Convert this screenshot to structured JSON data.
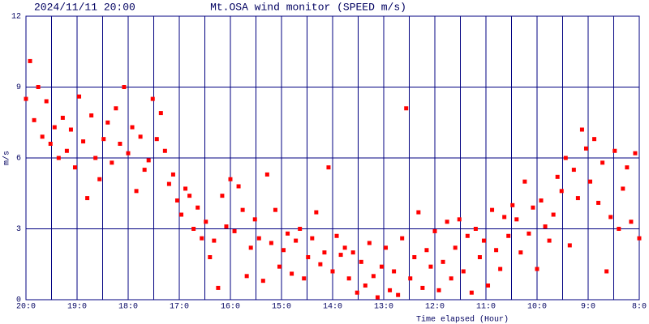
{
  "chart_data": {
    "type": "scatter",
    "date": "2024/11/11 20:00",
    "title": "Mt.OSA wind monitor (SPEED m/s)",
    "y_label": "m/s",
    "x_label": "Time elapsed (Hour)",
    "color": "#ff0000",
    "grid": true,
    "grid_color": "#000080",
    "xlim": [
      0,
      12
    ],
    "ylim": [
      0,
      12
    ],
    "yticks": [
      0,
      3,
      6,
      9,
      12
    ],
    "xticks": [
      {
        "value": 0,
        "label": "20:0"
      },
      {
        "value": 1,
        "label": "19:0"
      },
      {
        "value": 2,
        "label": "18:0"
      },
      {
        "value": 3,
        "label": "17:0"
      },
      {
        "value": 4,
        "label": "16:0"
      },
      {
        "value": 5,
        "label": "15:0"
      },
      {
        "value": 6,
        "label": "14:0"
      },
      {
        "value": 7,
        "label": "13:0"
      },
      {
        "value": 8,
        "label": "12:0"
      },
      {
        "value": 9,
        "label": "11:0"
      },
      {
        "value": 10,
        "label": "10:0"
      },
      {
        "value": 11,
        "label": "9:0"
      },
      {
        "value": 12,
        "label": "8:0"
      }
    ],
    "minor_xticks": [
      0.5,
      1.5,
      2.5,
      3.5,
      4.5,
      5.5,
      6.5,
      7.5,
      8.5,
      9.5,
      10.5,
      11.5
    ],
    "x": [
      0,
      0.08,
      0.16,
      0.24,
      0.32,
      0.4,
      0.48,
      0.56,
      0.64,
      0.72,
      0.8,
      0.88,
      0.96,
      1.04,
      1.12,
      1.2,
      1.28,
      1.36,
      1.44,
      1.52,
      1.6,
      1.68,
      1.76,
      1.84,
      1.92,
      2,
      2.08,
      2.16,
      2.24,
      2.32,
      2.4,
      2.48,
      2.56,
      2.64,
      2.72,
      2.8,
      2.88,
      2.96,
      3.04,
      3.12,
      3.2,
      3.28,
      3.36,
      3.44,
      3.52,
      3.6,
      3.68,
      3.76,
      3.84,
      3.92,
      4,
      4.08,
      4.16,
      4.24,
      4.32,
      4.4,
      4.48,
      4.56,
      4.64,
      4.72,
      4.8,
      4.88,
      4.96,
      5.04,
      5.12,
      5.2,
      5.28,
      5.36,
      5.44,
      5.52,
      5.6,
      5.68,
      5.76,
      5.84,
      5.92,
      6,
      6.08,
      6.16,
      6.24,
      6.32,
      6.4,
      6.48,
      6.56,
      6.64,
      6.72,
      6.8,
      6.88,
      6.96,
      7.04,
      7.12,
      7.2,
      7.28,
      7.36,
      7.44,
      7.52,
      7.6,
      7.68,
      7.76,
      7.84,
      7.92,
      8,
      8.08,
      8.16,
      8.24,
      8.32,
      8.4,
      8.48,
      8.56,
      8.64,
      8.72,
      8.8,
      8.88,
      8.96,
      9.04,
      9.12,
      9.2,
      9.28,
      9.36,
      9.44,
      9.52,
      9.6,
      9.68,
      9.76,
      9.84,
      9.92,
      10,
      10.08,
      10.16,
      10.24,
      10.32,
      10.4,
      10.48,
      10.56,
      10.64,
      10.72,
      10.8,
      10.88,
      10.96,
      11.04,
      11.12,
      11.2,
      11.28,
      11.36,
      11.44,
      11.52,
      11.6,
      11.68,
      11.76,
      11.84,
      11.92,
      12
    ],
    "values": [
      8.5,
      10.1,
      7.6,
      9.0,
      6.9,
      8.4,
      6.6,
      7.3,
      6.0,
      7.7,
      6.3,
      7.2,
      5.6,
      8.6,
      6.7,
      4.3,
      7.8,
      6.0,
      5.1,
      6.8,
      7.5,
      5.8,
      8.1,
      6.6,
      9.0,
      6.2,
      7.3,
      4.6,
      6.9,
      5.5,
      5.9,
      8.5,
      6.8,
      7.9,
      6.3,
      4.9,
      5.3,
      4.2,
      3.6,
      4.7,
      4.4,
      3.0,
      3.9,
      2.6,
      3.3,
      1.8,
      2.5,
      0.5,
      4.4,
      3.1,
      5.1,
      2.9,
      4.8,
      3.8,
      1.0,
      2.2,
      3.4,
      2.6,
      0.8,
      5.3,
      2.4,
      3.8,
      1.4,
      2.1,
      2.8,
      1.1,
      2.5,
      3.0,
      0.9,
      1.8,
      2.6,
      3.7,
      1.5,
      2.0,
      5.6,
      1.2,
      2.7,
      1.9,
      2.2,
      0.9,
      2.0,
      0.3,
      1.6,
      0.6,
      2.4,
      1.0,
      0.1,
      1.4,
      2.2,
      0.4,
      1.2,
      0.2,
      2.6,
      8.1,
      0.9,
      1.8,
      3.7,
      0.5,
      2.1,
      1.4,
      2.9,
      0.4,
      1.6,
      3.3,
      0.9,
      2.2,
      3.4,
      1.2,
      2.7,
      0.3,
      3.0,
      1.8,
      2.5,
      0.6,
      3.8,
      2.1,
      1.3,
      3.5,
      2.7,
      4.0,
      3.4,
      2.0,
      5.0,
      2.8,
      3.9,
      1.3,
      4.2,
      3.1,
      2.5,
      3.6,
      5.2,
      4.6,
      6.0,
      2.3,
      5.5,
      4.3,
      7.2,
      6.4,
      5.0,
      6.8,
      4.1,
      5.8,
      1.2,
      3.5,
      6.3,
      3.0,
      4.7,
      5.6,
      3.3,
      6.2,
      2.6
    ]
  }
}
